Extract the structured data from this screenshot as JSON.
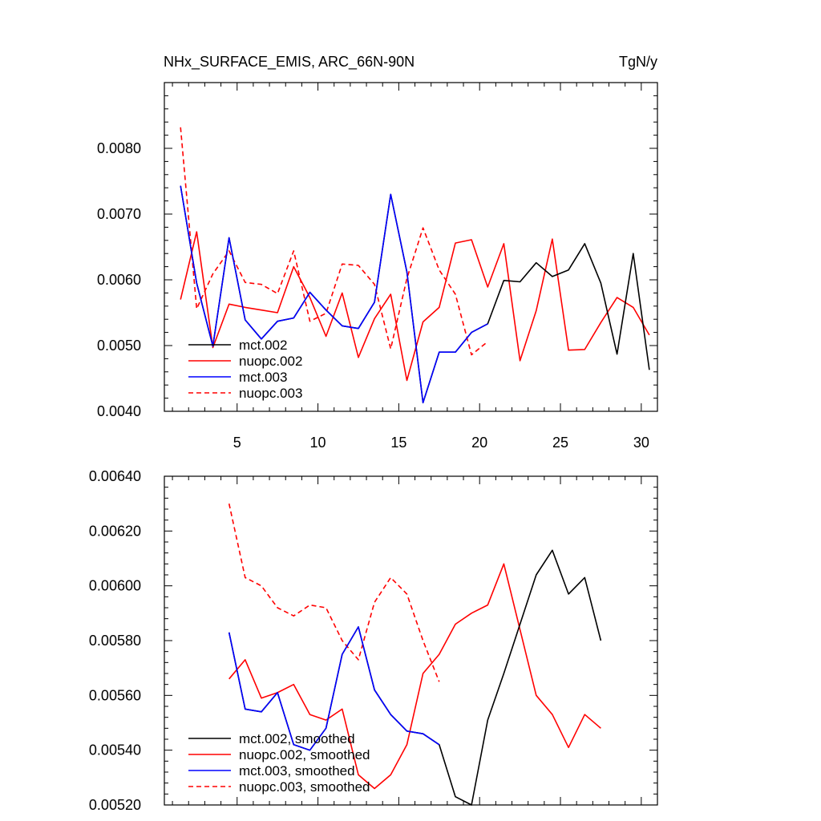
{
  "title_left": "NHx_SURFACE_EMIS, ARC_66N-90N",
  "title_right": "TgN/y",
  "chart_data": [
    {
      "type": "line",
      "xlim": [
        0.5,
        31
      ],
      "ylim": [
        0.004,
        0.009
      ],
      "xticks": [
        5,
        10,
        15,
        20,
        25,
        30
      ],
      "xtick_labels": [
        "5",
        "10",
        "15",
        "20",
        "25",
        "30"
      ],
      "yticks": [
        0.004,
        0.005,
        0.006,
        0.007,
        0.008
      ],
      "ytick_labels": [
        "0.0040",
        "0.0050",
        "0.0060",
        "0.0070",
        "0.0080"
      ],
      "legend_position": "bottom-left",
      "series": [
        {
          "name": "mct.002",
          "color": "#000000",
          "dash": "solid",
          "x": [
            1.5,
            2.5,
            3.5,
            4.5,
            5.5,
            6.5,
            7.5,
            8.5,
            9.5,
            10.5,
            11.5,
            12.5,
            13.5,
            14.5,
            15.5,
            16.5,
            17.5,
            18.5,
            19.5,
            20.5,
            21.5,
            22.5,
            23.5,
            24.5,
            25.5,
            26.5,
            27.5,
            28.5,
            29.5,
            30.5
          ],
          "values": [
            0.00743,
            0.00595,
            0.00499,
            0.00664,
            0.00539,
            0.0051,
            0.00537,
            0.00542,
            0.00581,
            0.00554,
            0.0053,
            0.00526,
            0.00566,
            0.0073,
            0.00612,
            0.00413,
            0.0049,
            0.0049,
            0.0052,
            0.00533,
            0.00599,
            0.00597,
            0.00626,
            0.00605,
            0.00615,
            0.00655,
            0.00595,
            0.00487,
            0.0064,
            0.00463
          ]
        },
        {
          "name": "nuopc.002",
          "color": "#ff0000",
          "dash": "solid",
          "x": [
            1.5,
            2.5,
            3.5,
            4.5,
            5.5,
            6.5,
            7.5,
            8.5,
            9.5,
            10.5,
            11.5,
            12.5,
            13.5,
            14.5,
            15.5,
            16.5,
            17.5,
            18.5,
            19.5,
            20.5,
            21.5,
            22.5,
            23.5,
            24.5,
            25.5,
            26.5,
            27.5,
            28.5,
            29.5,
            30.5
          ],
          "values": [
            0.0057,
            0.00673,
            0.00497,
            0.00563,
            0.00558,
            0.00554,
            0.0055,
            0.0062,
            0.00573,
            0.00514,
            0.0058,
            0.00482,
            0.00541,
            0.00578,
            0.00447,
            0.00536,
            0.00558,
            0.00656,
            0.00661,
            0.00589,
            0.00655,
            0.00477,
            0.00553,
            0.00662,
            0.00493,
            0.00494,
            0.00535,
            0.00573,
            0.00558,
            0.00516
          ]
        },
        {
          "name": "mct.003",
          "color": "#0000ff",
          "dash": "solid",
          "x": [
            1.5,
            2.5,
            3.5,
            4.5,
            5.5,
            6.5,
            7.5,
            8.5,
            9.5,
            10.5,
            11.5,
            12.5,
            13.5,
            14.5,
            15.5,
            16.5,
            17.5,
            18.5,
            19.5,
            20.5
          ],
          "values": [
            0.00743,
            0.00595,
            0.00499,
            0.00664,
            0.00539,
            0.0051,
            0.00537,
            0.00542,
            0.00581,
            0.00554,
            0.0053,
            0.00526,
            0.00566,
            0.0073,
            0.00612,
            0.00413,
            0.0049,
            0.0049,
            0.0052,
            0.00533
          ]
        },
        {
          "name": "nuopc.003",
          "color": "#ff0000",
          "dash": "dashed",
          "x": [
            1.5,
            2.5,
            3.5,
            4.5,
            5.5,
            6.5,
            7.5,
            8.5,
            9.5,
            10.5,
            11.5,
            12.5,
            13.5,
            14.5,
            15.5,
            16.5,
            17.5,
            18.5,
            19.5,
            20.5
          ],
          "values": [
            0.00832,
            0.00556,
            0.00609,
            0.00644,
            0.00596,
            0.00593,
            0.00579,
            0.00644,
            0.00537,
            0.00549,
            0.00624,
            0.00622,
            0.00593,
            0.00495,
            0.00602,
            0.00679,
            0.00615,
            0.00578,
            0.00486,
            0.00506
          ]
        }
      ]
    },
    {
      "type": "line",
      "xlim": [
        0.5,
        31
      ],
      "ylim": [
        0.0052,
        0.0064
      ],
      "xticks": [
        5,
        10,
        15,
        20,
        25,
        30
      ],
      "xtick_labels": [
        "",
        "",
        "",
        "",
        "",
        ""
      ],
      "yticks": [
        0.0052,
        0.0054,
        0.0056,
        0.0058,
        0.006,
        0.0062,
        0.0064
      ],
      "ytick_labels": [
        "0.00520",
        "0.00540",
        "0.00560",
        "0.00580",
        "0.00600",
        "0.00620",
        "0.00640"
      ],
      "legend_position": "bottom-left",
      "series": [
        {
          "name": "mct.002, smoothed",
          "color": "#000000",
          "dash": "solid",
          "x": [
            4.5,
            5.5,
            6.5,
            7.5,
            8.5,
            9.5,
            10.5,
            11.5,
            12.5,
            13.5,
            14.5,
            15.5,
            16.5,
            17.5,
            18.5,
            19.5,
            20.5,
            21.5,
            22.5,
            23.5,
            24.5,
            25.5,
            26.5,
            27.5
          ],
          "values": [
            0.00583,
            0.00555,
            0.00554,
            0.00561,
            0.00542,
            0.0054,
            0.00548,
            0.00575,
            0.00585,
            0.00562,
            0.00553,
            0.00547,
            0.00546,
            0.00542,
            0.00523,
            0.0052,
            0.00551,
            0.00568,
            0.00586,
            0.00604,
            0.00613,
            0.00597,
            0.00603,
            0.0058
          ]
        },
        {
          "name": "nuopc.002, smoothed",
          "color": "#ff0000",
          "dash": "solid",
          "x": [
            4.5,
            5.5,
            6.5,
            7.5,
            8.5,
            9.5,
            10.5,
            11.5,
            12.5,
            13.5,
            14.5,
            15.5,
            16.5,
            17.5,
            18.5,
            19.5,
            20.5,
            21.5,
            22.5,
            23.5,
            24.5,
            25.5,
            26.5,
            27.5
          ],
          "values": [
            0.00566,
            0.00573,
            0.00559,
            0.00561,
            0.00564,
            0.00553,
            0.00551,
            0.00555,
            0.00531,
            0.00526,
            0.00531,
            0.00542,
            0.00568,
            0.00575,
            0.00586,
            0.0059,
            0.00593,
            0.00608,
            0.00584,
            0.0056,
            0.00553,
            0.00541,
            0.00553,
            0.00548
          ]
        },
        {
          "name": "mct.003, smoothed",
          "color": "#0000ff",
          "dash": "solid",
          "x": [
            4.5,
            5.5,
            6.5,
            7.5,
            8.5,
            9.5,
            10.5,
            11.5,
            12.5,
            13.5,
            14.5,
            15.5,
            16.5,
            17.5
          ],
          "values": [
            0.00583,
            0.00555,
            0.00554,
            0.00561,
            0.00542,
            0.0054,
            0.00548,
            0.00575,
            0.00585,
            0.00562,
            0.00553,
            0.00547,
            0.00546,
            0.00542
          ]
        },
        {
          "name": "nuopc.003, smoothed",
          "color": "#ff0000",
          "dash": "dashed",
          "x": [
            4.5,
            5.5,
            6.5,
            7.5,
            8.5,
            9.5,
            10.5,
            11.5,
            12.5,
            13.5,
            14.5,
            15.5,
            16.5,
            17.5
          ],
          "values": [
            0.0063,
            0.00603,
            0.006,
            0.00592,
            0.00589,
            0.00593,
            0.00592,
            0.0058,
            0.00573,
            0.00594,
            0.00603,
            0.00597,
            0.0058,
            0.00565
          ]
        }
      ]
    }
  ]
}
